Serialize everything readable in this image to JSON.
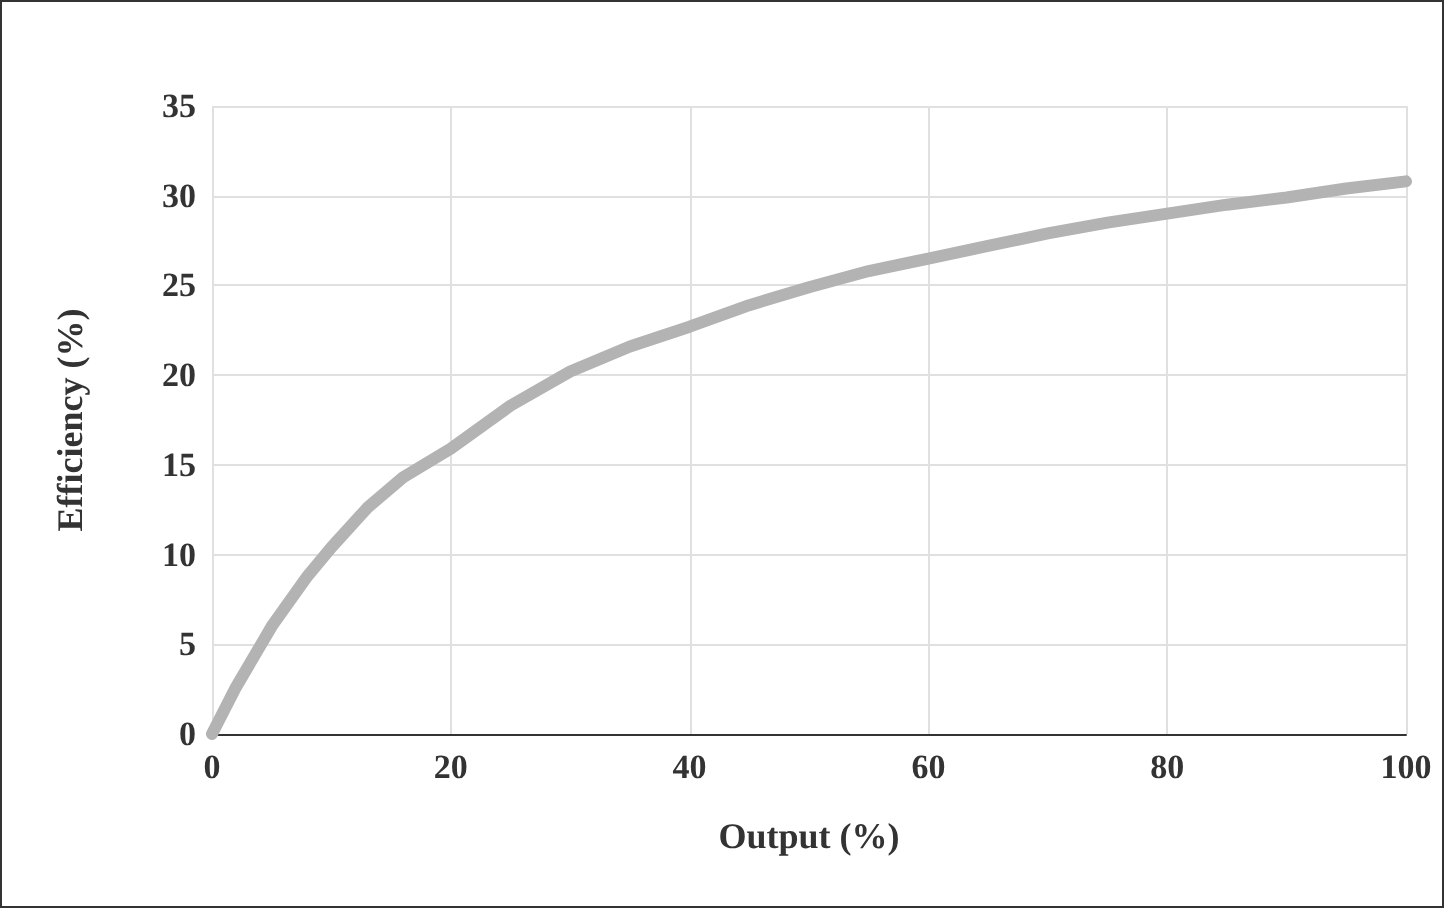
{
  "chart_data": {
    "type": "line",
    "xlabel": "Output (%)",
    "ylabel": "Efficiency (%)",
    "x": [
      0,
      2,
      5,
      8,
      10,
      13,
      16,
      20,
      25,
      30,
      35,
      40,
      45,
      50,
      55,
      60,
      65,
      70,
      75,
      80,
      85,
      90,
      95,
      100
    ],
    "series": [
      {
        "color": "#b3b3b3",
        "values": [
          0,
          2.6,
          6,
          8.8,
          10.4,
          12.6,
          14.3,
          15.9,
          18.3,
          20.2,
          21.6,
          22.7,
          23.9,
          24.9,
          25.8,
          26.5,
          27.2,
          27.9,
          28.5,
          29.0,
          29.5,
          29.9,
          30.4,
          30.8
        ]
      }
    ],
    "xlim": [
      0,
      100
    ],
    "xticks": [
      0,
      20,
      40,
      60,
      80,
      100
    ],
    "ylim": [
      0,
      35
    ],
    "yticks": [
      0,
      5,
      10,
      15,
      20,
      25,
      30,
      35
    ],
    "grid": true,
    "marker": "none",
    "line_style": "solid"
  }
}
